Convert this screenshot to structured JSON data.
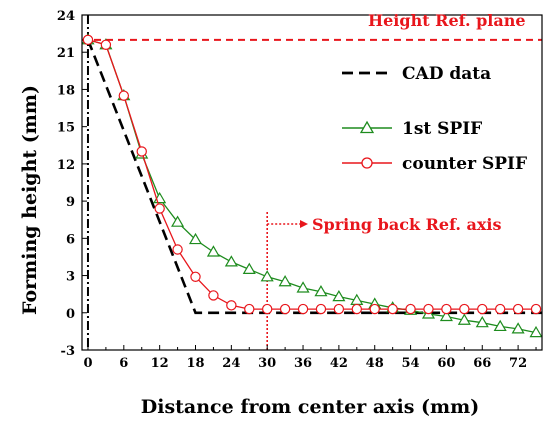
{
  "chart_data": {
    "type": "line",
    "title": "",
    "xlabel": "Distance from center axis (mm)",
    "ylabel": "Forming height (mm)",
    "xlim": [
      -1,
      76
    ],
    "ylim": [
      -3,
      24
    ],
    "xticks": [
      0,
      6,
      12,
      18,
      24,
      30,
      36,
      42,
      48,
      54,
      60,
      66,
      72
    ],
    "yticks": [
      -3,
      0,
      3,
      6,
      9,
      12,
      15,
      18,
      21,
      24
    ],
    "legend_position": "right",
    "reference_height": 22,
    "reference_x": 30,
    "colors": {
      "cad": "#000000",
      "first": "#1e8c1e",
      "counter": "#e8161c",
      "annotation": "#e8161c"
    },
    "series": [
      {
        "name": "CAD data",
        "style": "dashed",
        "x": [
          0,
          18,
          76
        ],
        "y": [
          22,
          0,
          0
        ]
      },
      {
        "name": "1st SPIF",
        "marker": "triangle",
        "x": [
          0,
          3,
          6,
          9,
          12,
          15,
          18,
          21,
          24,
          27,
          30,
          33,
          36,
          39,
          42,
          45,
          48,
          51,
          54,
          57,
          60,
          63,
          66,
          69,
          72,
          75
        ],
        "y": [
          22,
          21.6,
          17.5,
          12.8,
          9.2,
          7.3,
          5.9,
          4.9,
          4.1,
          3.5,
          2.9,
          2.5,
          2.0,
          1.7,
          1.3,
          1.0,
          0.7,
          0.4,
          0.2,
          -0.1,
          -0.3,
          -0.6,
          -0.8,
          -1.1,
          -1.3,
          -1.6
        ]
      },
      {
        "name": "counter SPIF",
        "marker": "circle",
        "x": [
          0,
          3,
          6,
          9,
          12,
          15,
          18,
          21,
          24,
          27,
          30,
          33,
          36,
          39,
          42,
          45,
          48,
          51,
          54,
          57,
          60,
          63,
          66,
          69,
          72,
          75
        ],
        "y": [
          22,
          21.6,
          17.5,
          13.0,
          8.4,
          5.1,
          2.9,
          1.4,
          0.6,
          0.3,
          0.3,
          0.3,
          0.3,
          0.3,
          0.3,
          0.3,
          0.3,
          0.3,
          0.3,
          0.3,
          0.3,
          0.3,
          0.3,
          0.3,
          0.3,
          0.3
        ]
      }
    ],
    "annotations": {
      "height_ref": "Height Ref. plane",
      "spring_back": "Spring back Ref. axis"
    }
  }
}
